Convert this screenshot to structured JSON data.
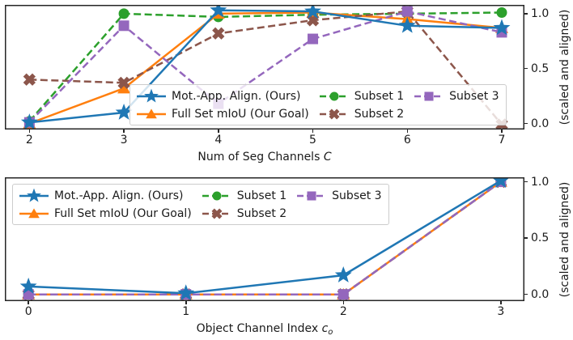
{
  "figure": {
    "background": "#ffffff",
    "text_color": "#1a1a1a",
    "spine_color": "#262626",
    "legend_border_color": "#cccccc"
  },
  "chart_data": [
    {
      "id": "top",
      "type": "line",
      "title": "",
      "xlabel": "Num of Seg Channels",
      "xlabel_var": "C",
      "xlabel_var_sub": "",
      "ylabel": "(scaled and aligned)",
      "x": [
        2,
        3,
        4,
        5,
        6,
        7
      ],
      "xtick_labels": [
        "2",
        "3",
        "4",
        "5",
        "6",
        "7"
      ],
      "ytick_values": [
        0.0,
        0.5,
        1.0
      ],
      "ytick_labels": [
        "0.0",
        "0.5",
        "1.0"
      ],
      "xlim": [
        1.74,
        7.24
      ],
      "ylim": [
        -0.055,
        1.08
      ],
      "grid": false,
      "legend_position": "lower center-right inside",
      "legend_ncol": 3,
      "series": [
        {
          "name": "Mot.-App. Align. (Ours)",
          "color": "#1f77b4",
          "marker": "star",
          "line": "solid",
          "z": 5,
          "values": [
            0.01,
            0.1,
            1.03,
            1.02,
            0.89,
            0.87
          ]
        },
        {
          "name": "Full Set mIoU (Our Goal)",
          "color": "#ff7f0e",
          "marker": "triangle",
          "line": "solid",
          "z": 2,
          "values": [
            0.0,
            0.32,
            1.0,
            1.01,
            0.95,
            0.87
          ]
        },
        {
          "name": "Subset 1",
          "color": "#2ca02c",
          "marker": "circle",
          "line": "dashed",
          "z": 1,
          "values": [
            0.02,
            1.0,
            0.97,
            0.99,
            1.0,
            1.01
          ]
        },
        {
          "name": "Subset 2",
          "color": "#8c564b",
          "marker": "x",
          "line": "dashed",
          "z": 3,
          "values": [
            0.4,
            0.37,
            0.82,
            0.94,
            1.02,
            -0.01
          ]
        },
        {
          "name": "Subset 3",
          "color": "#9467bd",
          "marker": "square",
          "line": "dashed",
          "z": 4,
          "values": [
            0.01,
            0.89,
            0.18,
            0.77,
            1.02,
            0.83
          ]
        }
      ]
    },
    {
      "id": "bottom",
      "type": "line",
      "title": "",
      "xlabel": "Object Channel Index",
      "xlabel_var": "c",
      "xlabel_var_sub": "o",
      "ylabel": "(scaled and aligned)",
      "x": [
        0,
        1,
        2,
        3
      ],
      "xtick_labels": [
        "0",
        "1",
        "2",
        "3"
      ],
      "ytick_values": [
        0.0,
        0.5,
        1.0
      ],
      "ytick_labels": [
        "0.0",
        "0.5",
        "1.0"
      ],
      "xlim": [
        -0.15,
        3.15
      ],
      "ylim": [
        -0.06,
        1.04
      ],
      "grid": false,
      "legend_position": "upper left inside",
      "legend_ncol": 3,
      "series": [
        {
          "name": "Mot.-App. Align. (Ours)",
          "color": "#1f77b4",
          "marker": "star",
          "line": "solid",
          "z": 5,
          "values": [
            0.07,
            0.01,
            0.17,
            1.01
          ]
        },
        {
          "name": "Full Set mIoU (Our Goal)",
          "color": "#ff7f0e",
          "marker": "triangle",
          "line": "solid",
          "z": 2,
          "values": [
            0.0,
            0.0,
            0.0,
            1.0
          ]
        },
        {
          "name": "Subset 1",
          "color": "#2ca02c",
          "marker": "circle",
          "line": "dashed",
          "z": 1,
          "values": [
            0.0,
            0.0,
            0.0,
            1.0
          ]
        },
        {
          "name": "Subset 2",
          "color": "#8c564b",
          "marker": "x",
          "line": "dashed",
          "z": 3,
          "values": [
            0.0,
            0.0,
            0.0,
            1.0
          ]
        },
        {
          "name": "Subset 3",
          "color": "#9467bd",
          "marker": "square",
          "line": "dashed",
          "z": 4,
          "values": [
            0.0,
            0.0,
            0.0,
            1.0
          ]
        }
      ]
    }
  ]
}
